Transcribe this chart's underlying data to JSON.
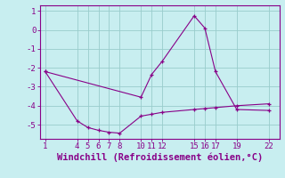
{
  "title": "",
  "xlabel": "Windchill (Refroidissement éolien,°C)",
  "ylabel": "",
  "bg_color": "#c8eef0",
  "line_color": "#880088",
  "grid_color": "#99cccc",
  "x_ticks": [
    1,
    4,
    5,
    6,
    7,
    8,
    10,
    11,
    12,
    15,
    16,
    17,
    19,
    22
  ],
  "series1_x": [
    1,
    4,
    5,
    6,
    7,
    8,
    10,
    11,
    12,
    15,
    16,
    17,
    19,
    22
  ],
  "series1_y": [
    -2.2,
    -4.8,
    -5.15,
    -5.3,
    -5.4,
    -5.45,
    -4.55,
    -4.45,
    -4.35,
    -4.2,
    -4.15,
    -4.1,
    -4.0,
    -3.9
  ],
  "series2_x": [
    1,
    10,
    11,
    12,
    15,
    16,
    17,
    19,
    22
  ],
  "series2_y": [
    -2.2,
    -3.55,
    -2.35,
    -1.65,
    0.75,
    0.1,
    -2.2,
    -4.2,
    -4.25
  ],
  "ylim": [
    -5.75,
    1.3
  ],
  "xlim": [
    0.5,
    23.0
  ],
  "yticks": [
    1,
    0,
    -1,
    -2,
    -3,
    -4,
    -5
  ],
  "tick_fontsize": 6.5,
  "label_fontsize": 7.5
}
